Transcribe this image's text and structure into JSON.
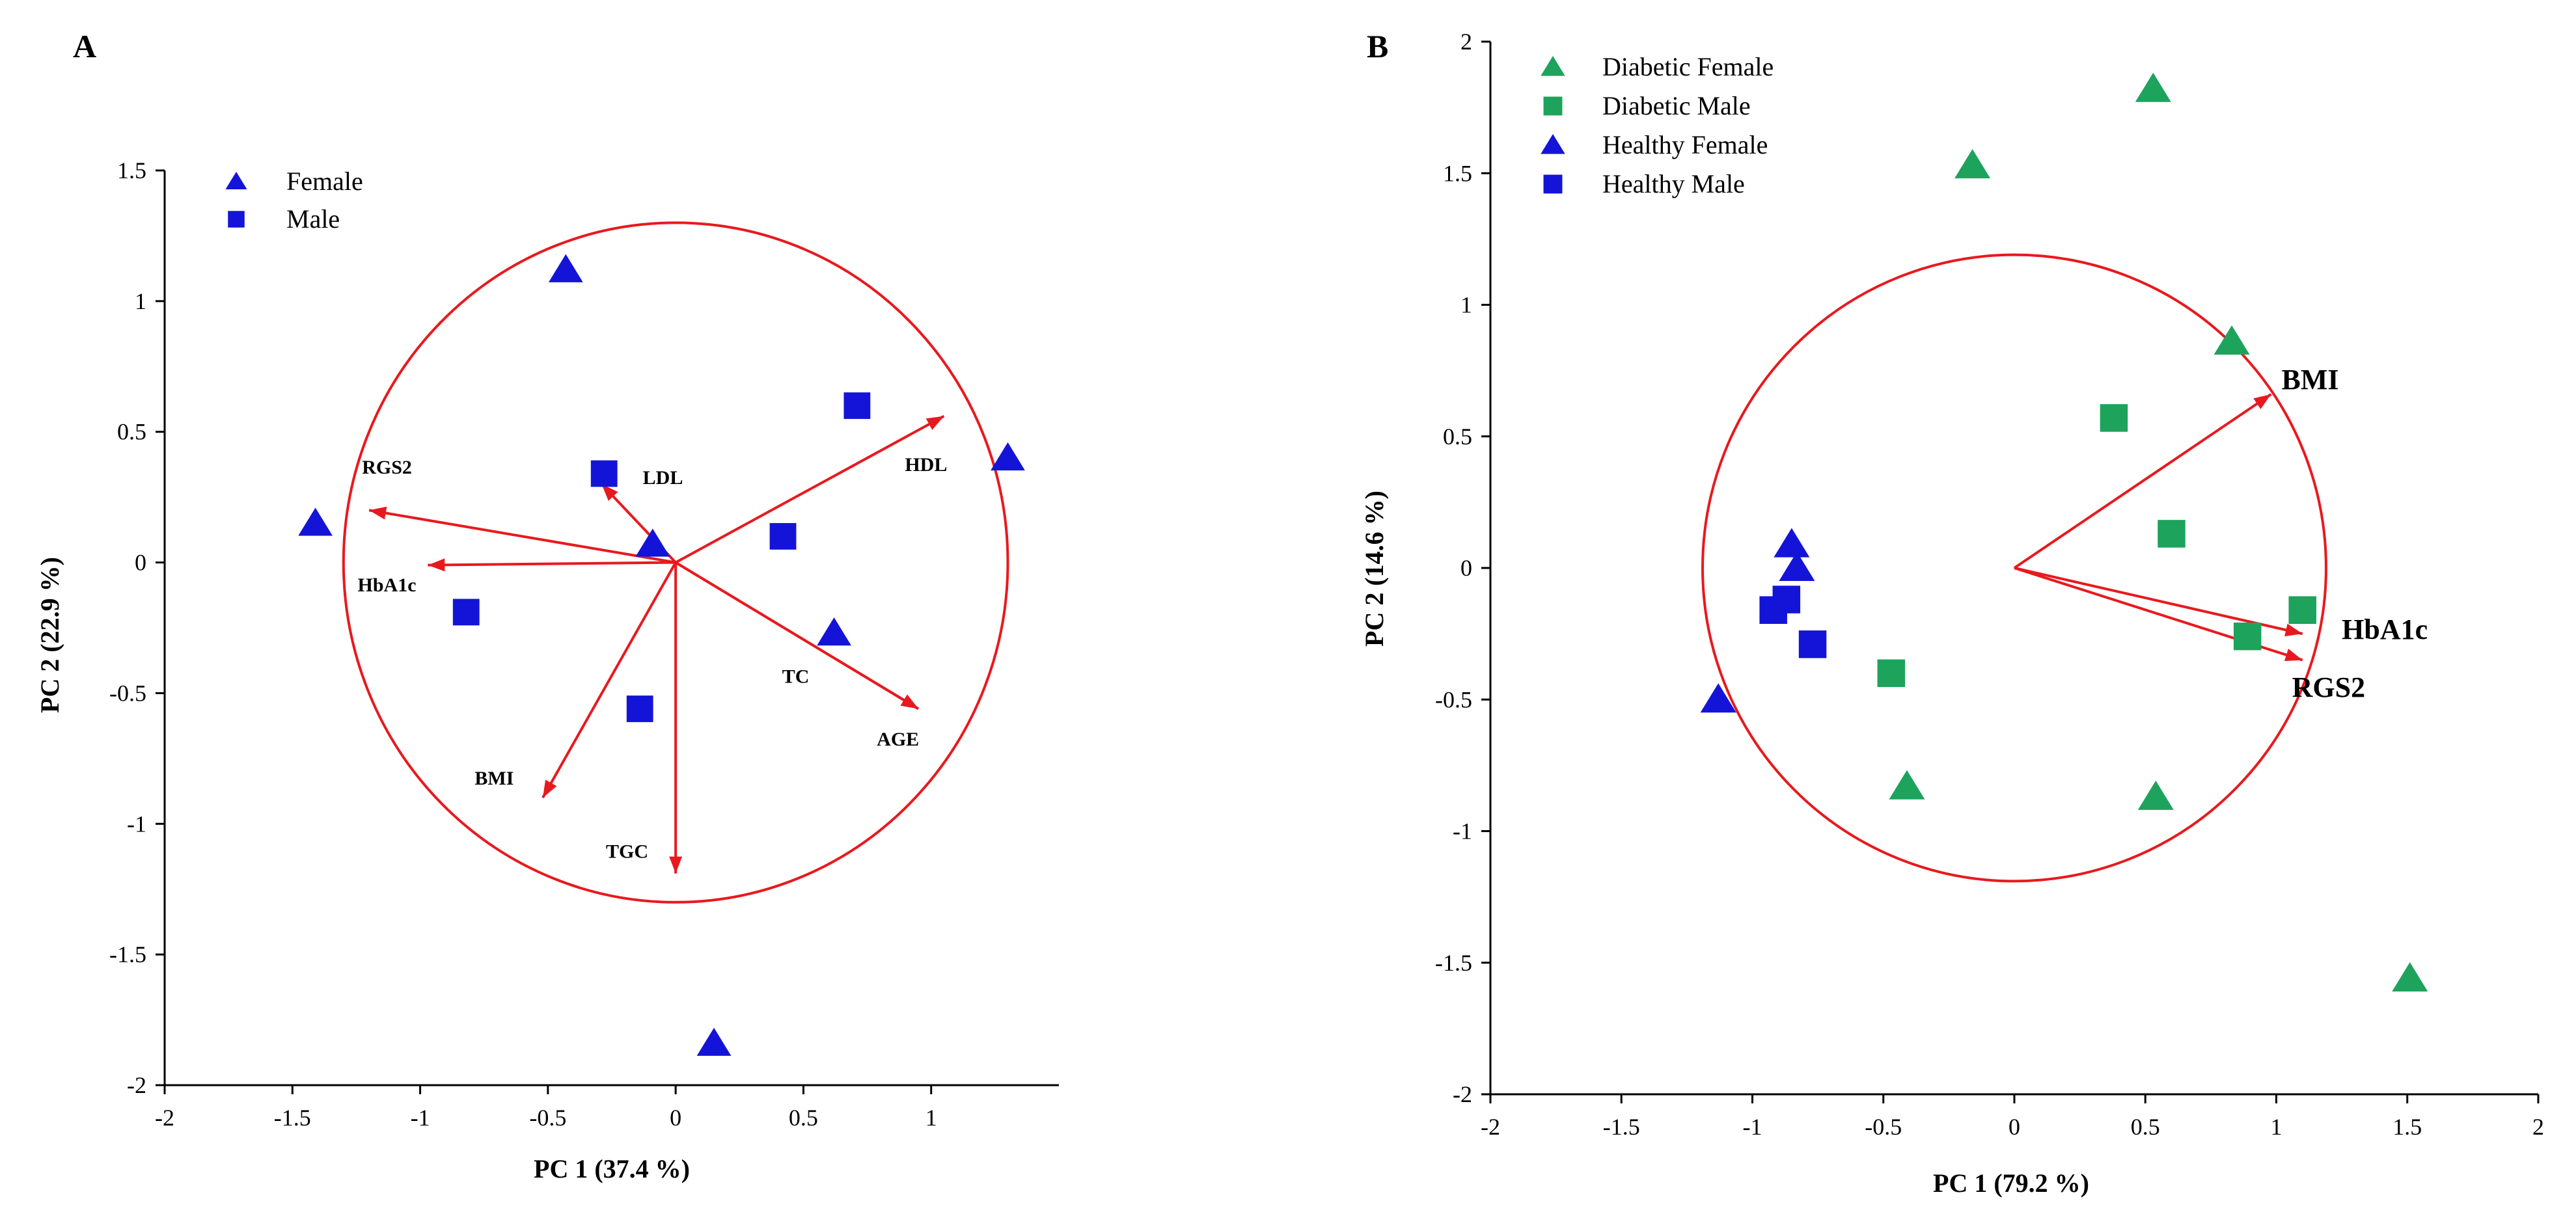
{
  "colors": {
    "blue": "#1414d8",
    "green": "#1ea35c",
    "red": "#e8191e",
    "axis": "#000000"
  },
  "chart_data": [
    {
      "type": "scatter",
      "panel": "A",
      "xlabel": "PC 1 (37.4 %)",
      "ylabel": "PC 2 (22.9 %)",
      "xlim": [
        -2,
        1.5
      ],
      "ylim": [
        -2,
        1.5
      ],
      "xticks": [
        -2,
        -1.5,
        -1,
        -0.5,
        0,
        0.5,
        1
      ],
      "xtick_labels": [
        "-2",
        "-1.5",
        "-1",
        "-0.5",
        "0",
        "0.5",
        "1"
      ],
      "yticks": [
        -2,
        -1.5,
        -1,
        -0.5,
        0,
        0.5,
        1,
        1.5
      ],
      "ytick_labels": [
        "-2",
        "-1.5",
        "-1",
        "-0.5",
        "0",
        "0.5",
        "1",
        "1.5"
      ],
      "legend_position": "top-left",
      "circle_radius": 1.3,
      "series": [
        {
          "name": "Female",
          "marker": "triangle",
          "color": "#1414d8",
          "points": [
            [
              -0.43,
              1.12
            ],
            [
              1.3,
              0.4
            ],
            [
              -1.41,
              0.15
            ],
            [
              -0.09,
              0.07
            ],
            [
              0.62,
              -0.27
            ],
            [
              0.15,
              -1.84
            ]
          ]
        },
        {
          "name": "Male",
          "marker": "square",
          "color": "#1414d8",
          "points": [
            [
              0.71,
              0.6
            ],
            [
              -0.28,
              0.34
            ],
            [
              0.42,
              0.1
            ],
            [
              -0.82,
              -0.19
            ],
            [
              -0.14,
              -0.56
            ]
          ]
        }
      ],
      "vectors": [
        {
          "label": "RGS2",
          "end": [
            -1.2,
            0.2
          ],
          "label_at": [
            -1.13,
            0.34
          ],
          "anchor": "middle"
        },
        {
          "label": "HbA1c",
          "end": [
            -0.97,
            -0.01
          ],
          "label_at": [
            -1.13,
            -0.11
          ],
          "anchor": "middle"
        },
        {
          "label": "LDL",
          "end": [
            -0.29,
            0.3
          ],
          "label_at": [
            -0.05,
            0.3
          ],
          "anchor": "middle"
        },
        {
          "label": "HDL",
          "end": [
            1.05,
            0.56
          ],
          "label_at": [
            0.98,
            0.35
          ],
          "anchor": "middle"
        },
        {
          "label": "TC",
          "end": [
            0.95,
            -0.56
          ],
          "label_at": [
            0.47,
            -0.46
          ],
          "anchor": "middle"
        },
        {
          "label": "AGE",
          "end": [
            0.95,
            -0.56
          ],
          "label_at": [
            0.87,
            -0.7
          ],
          "anchor": "middle"
        },
        {
          "label": "BMI",
          "end": [
            -0.52,
            -0.9
          ],
          "label_at": [
            -0.71,
            -0.85
          ],
          "anchor": "middle"
        },
        {
          "label": "TGC",
          "end": [
            0.0,
            -1.19
          ],
          "label_at": [
            -0.19,
            -1.13
          ],
          "anchor": "middle"
        }
      ]
    },
    {
      "type": "scatter",
      "panel": "B",
      "xlabel": "PC 1 (79.2 %)",
      "ylabel": "PC 2 (14.6 %)",
      "xlim": [
        -2,
        2
      ],
      "ylim": [
        -2,
        2
      ],
      "xticks": [
        -2,
        -1.5,
        -1,
        -0.5,
        0,
        0.5,
        1,
        1.5,
        2
      ],
      "xtick_labels": [
        "-2",
        "-1.5",
        "-1",
        "-0.5",
        "0",
        "0.5",
        "1",
        "1.5",
        "2"
      ],
      "yticks": [
        -2,
        -1.5,
        -1,
        -0.5,
        0,
        0.5,
        1,
        1.5,
        2
      ],
      "ytick_labels": [
        "-2",
        "-1.5",
        "-1",
        "-0.5",
        "0",
        "0.5",
        "1",
        "1.5",
        "2"
      ],
      "legend_position": "top-left",
      "circle_radius": 1.19,
      "series": [
        {
          "name": "Diabetic Female",
          "marker": "triangle",
          "color": "#1ea35c",
          "points": [
            [
              0.53,
              1.82
            ],
            [
              -0.16,
              1.53
            ],
            [
              0.83,
              0.86
            ],
            [
              -0.41,
              -0.83
            ],
            [
              0.54,
              -0.87
            ],
            [
              1.51,
              -1.56
            ]
          ]
        },
        {
          "name": "Diabetic Male",
          "marker": "square",
          "color": "#1ea35c",
          "points": [
            [
              0.38,
              0.57
            ],
            [
              0.6,
              0.13
            ],
            [
              1.1,
              -0.16
            ],
            [
              0.89,
              -0.26
            ],
            [
              -0.47,
              -0.4
            ]
          ]
        },
        {
          "name": "Healthy Female",
          "marker": "triangle",
          "color": "#1414d8",
          "points": [
            [
              -0.85,
              0.09
            ],
            [
              -0.83,
              0.0
            ],
            [
              -1.13,
              -0.5
            ]
          ]
        },
        {
          "name": "Healthy Male",
          "marker": "square",
          "color": "#1414d8",
          "points": [
            [
              -0.87,
              -0.12
            ],
            [
              -0.92,
              -0.16
            ],
            [
              -0.77,
              -0.29
            ]
          ]
        }
      ],
      "vectors": [
        {
          "label": "BMI",
          "end": [
            0.98,
            0.66
          ],
          "label_at": [
            1.02,
            0.68
          ],
          "anchor": "start"
        },
        {
          "label": "HbA1c",
          "end": [
            1.1,
            -0.25
          ],
          "label_at": [
            1.25,
            -0.27
          ],
          "anchor": "start"
        },
        {
          "label": "RGS2",
          "end": [
            1.1,
            -0.35
          ],
          "label_at": [
            1.06,
            -0.49
          ],
          "anchor": "start"
        }
      ]
    }
  ]
}
